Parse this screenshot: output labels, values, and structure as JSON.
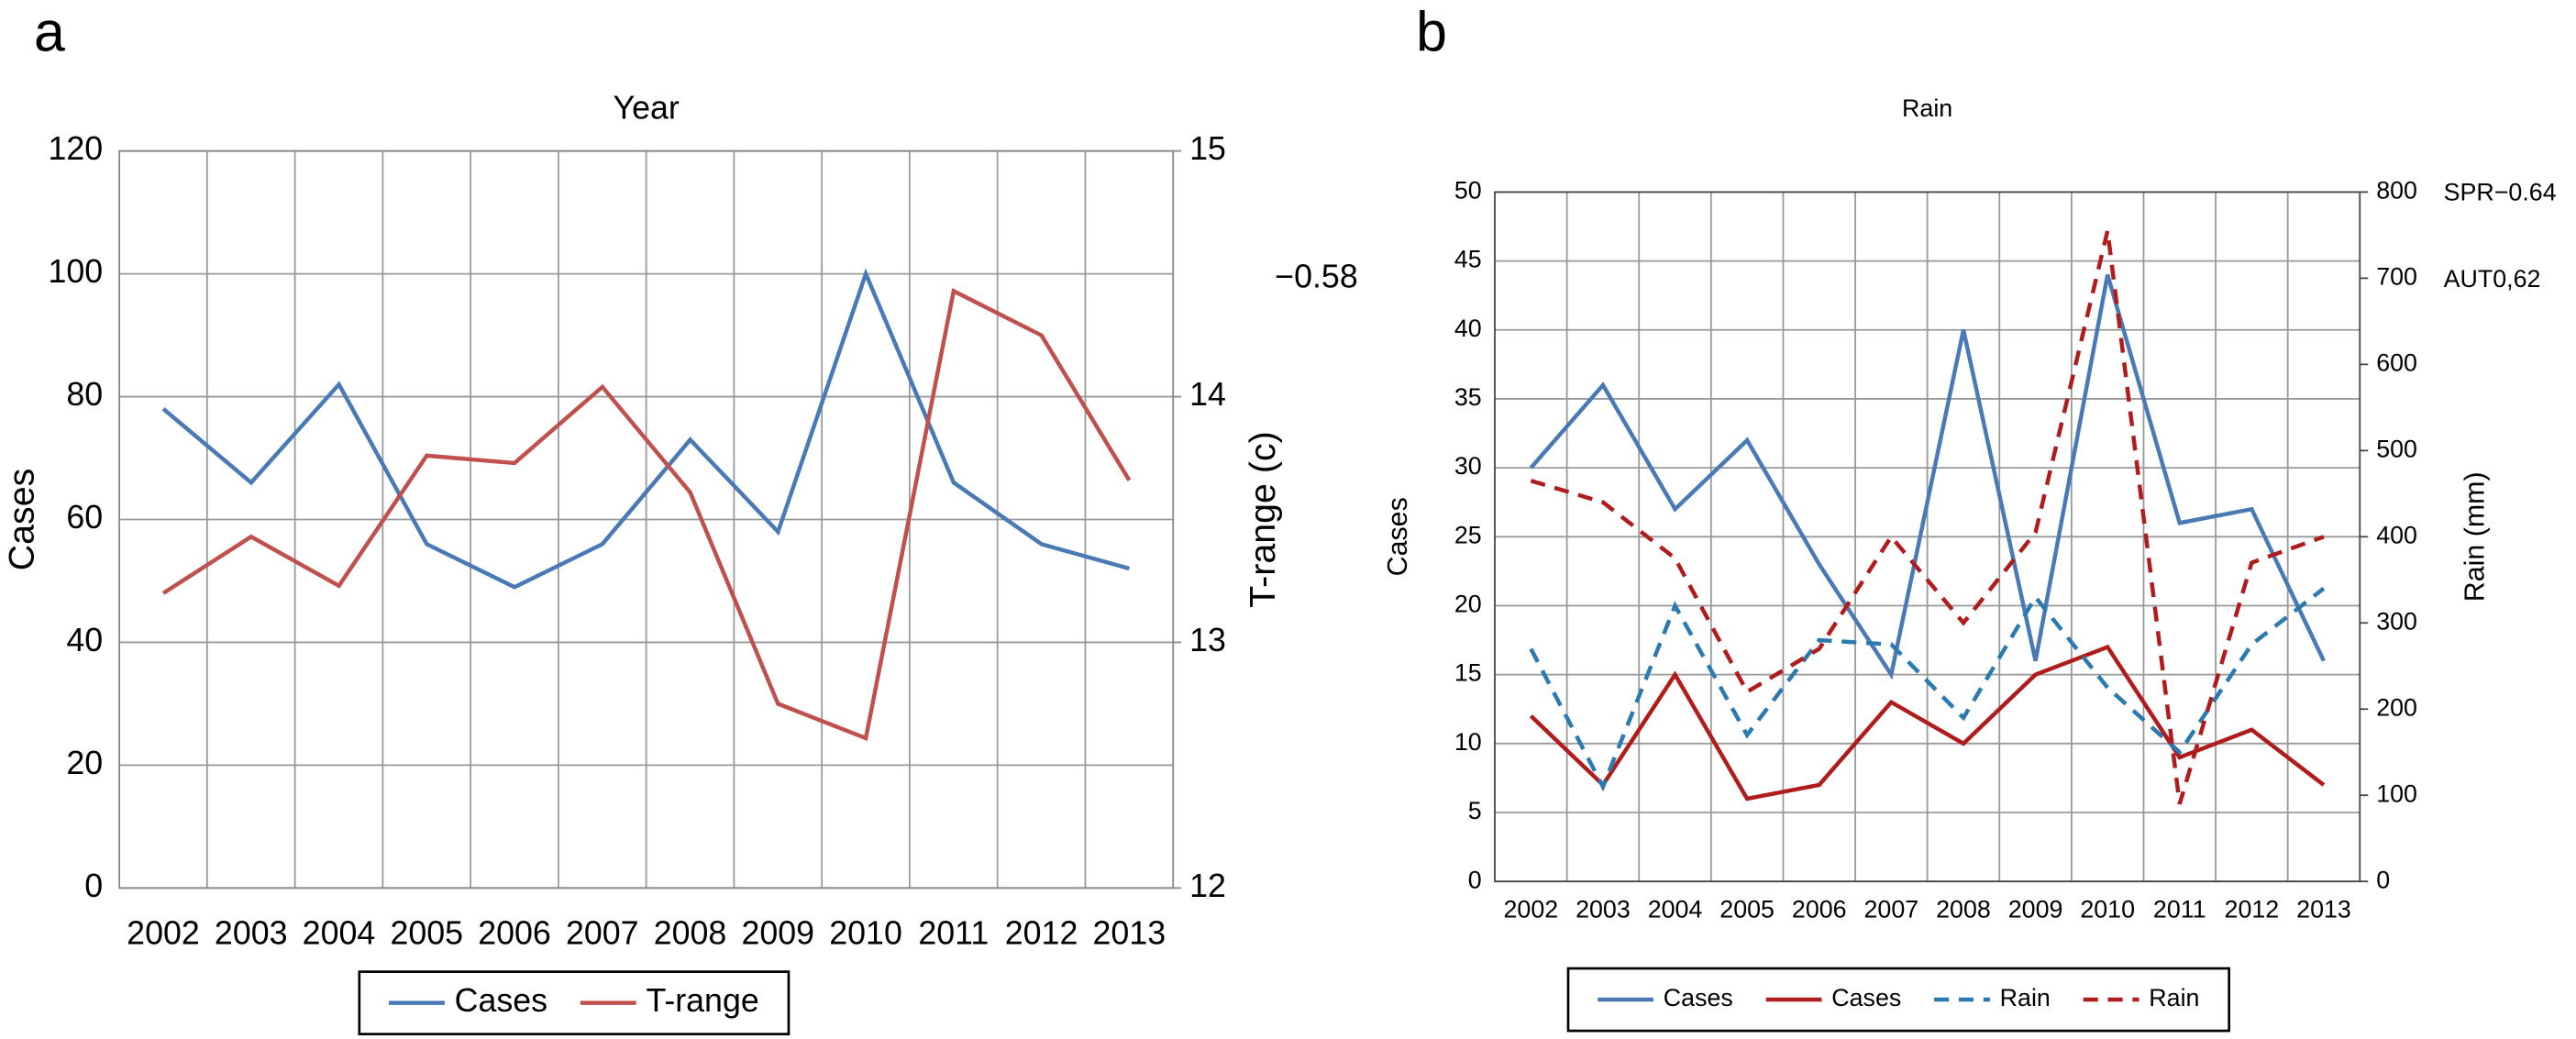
{
  "chart_data": [
    {
      "type": "line",
      "panel_label": "a",
      "title": "Year",
      "categories": [
        "2002",
        "2003",
        "2004",
        "2005",
        "2006",
        "2007",
        "2008",
        "2009",
        "2010",
        "2011",
        "2012",
        "2013"
      ],
      "ylabel": "Cases",
      "y2label": "T-range (c)",
      "ylim": [
        0,
        120
      ],
      "yticks": [
        0,
        20,
        40,
        60,
        80,
        100,
        120
      ],
      "y2lim": [
        12,
        15
      ],
      "y2ticks": [
        12,
        13,
        14,
        15
      ],
      "grid": true,
      "legend": "bottom",
      "annotations": [
        {
          "text": "−0.58",
          "color": "#000000"
        }
      ],
      "series": [
        {
          "name": "Cases",
          "color": "#4a7ab5",
          "dash": false,
          "axis": "y",
          "values": [
            78,
            66,
            82,
            56,
            49,
            56,
            73,
            58,
            100,
            66,
            56,
            52
          ]
        },
        {
          "name": "T-range",
          "color": "#c0504d",
          "dash": false,
          "axis": "y2",
          "values": [
            13.2,
            13.43,
            13.23,
            13.76,
            13.73,
            14.04,
            13.61,
            12.75,
            12.61,
            14.43,
            14.25,
            13.66
          ]
        }
      ]
    },
    {
      "type": "line",
      "panel_label": "b",
      "title": "Rain",
      "categories": [
        "2002",
        "2003",
        "2004",
        "2005",
        "2006",
        "2007",
        "2008",
        "2009",
        "2010",
        "2011",
        "2012",
        "2013"
      ],
      "ylabel": "Cases",
      "y2label": "Rain (mm)",
      "ylim": [
        0,
        50
      ],
      "yticks": [
        0,
        5,
        10,
        15,
        20,
        25,
        30,
        35,
        40,
        45,
        50
      ],
      "y2lim": [
        0,
        800
      ],
      "y2ticks": [
        0,
        100,
        200,
        300,
        400,
        500,
        600,
        700,
        800
      ],
      "grid": true,
      "legend": "bottom",
      "annotations": [
        {
          "text": "SPR−0.64",
          "color": "#4a7ab5"
        },
        {
          "text": "AUT0,62",
          "color": "#c00000"
        }
      ],
      "series": [
        {
          "name": "Cases",
          "color": "#4a7ab5",
          "dash": false,
          "axis": "y",
          "values": [
            30,
            36,
            27,
            32,
            23,
            15,
            40,
            16,
            44,
            26,
            27,
            16
          ]
        },
        {
          "name": "Cases",
          "color": "#b01c1c",
          "dash": false,
          "axis": "y",
          "values": [
            12,
            7,
            15,
            6,
            7,
            13,
            10,
            15,
            17,
            9,
            11,
            7
          ]
        },
        {
          "name": "Rain",
          "color": "#2a7ab0",
          "dash": true,
          "axis": "y2",
          "values": [
            270,
            110,
            320,
            170,
            280,
            275,
            190,
            330,
            225,
            150,
            275,
            340
          ]
        },
        {
          "name": "Rain",
          "color": "#b01c1c",
          "dash": true,
          "axis": "y2",
          "values": [
            465,
            440,
            375,
            220,
            270,
            400,
            300,
            405,
            755,
            90,
            370,
            400
          ]
        }
      ]
    }
  ]
}
